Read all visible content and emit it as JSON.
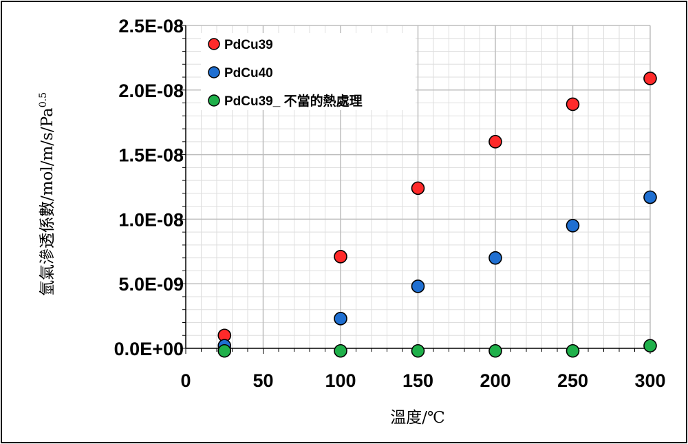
{
  "chart_data": {
    "type": "scatter",
    "xlabel": "溫度/℃",
    "ylabel": "氫氣滲透係數/mol/m/s/Pa",
    "ylabel_sup": "0.5",
    "xlim": [
      0,
      300
    ],
    "ylim": [
      0,
      2.5e-08
    ],
    "x_ticks": [
      "0",
      "50",
      "100",
      "150",
      "200",
      "250",
      "300"
    ],
    "y_ticks": [
      "0.0E+00",
      "5.0E-09",
      "1.0E-08",
      "1.5E-08",
      "2.0E-08",
      "2.5E-08"
    ],
    "grid": true,
    "legend_position": "top-left",
    "series": [
      {
        "name": "PdCu39",
        "color": "#ff2a2a",
        "x": [
          25,
          100,
          150,
          200,
          250,
          300
        ],
        "y": [
          1e-09,
          7.1e-09,
          1.24e-08,
          1.6e-08,
          1.89e-08,
          2.09e-08
        ]
      },
      {
        "name": "PdCu40",
        "color": "#1f6fd1",
        "x": [
          25,
          100,
          150,
          200,
          250,
          300
        ],
        "y": [
          2e-10,
          2.3e-09,
          4.8e-09,
          7e-09,
          9.5e-09,
          1.17e-08
        ]
      },
      {
        "name": "PdCu39_ 不當的熱處理",
        "color": "#1fb04a",
        "x": [
          25,
          100,
          150,
          200,
          250,
          300
        ],
        "y": [
          -2e-10,
          -2e-10,
          -2e-10,
          -2e-10,
          -2e-10,
          2e-10
        ]
      }
    ]
  }
}
